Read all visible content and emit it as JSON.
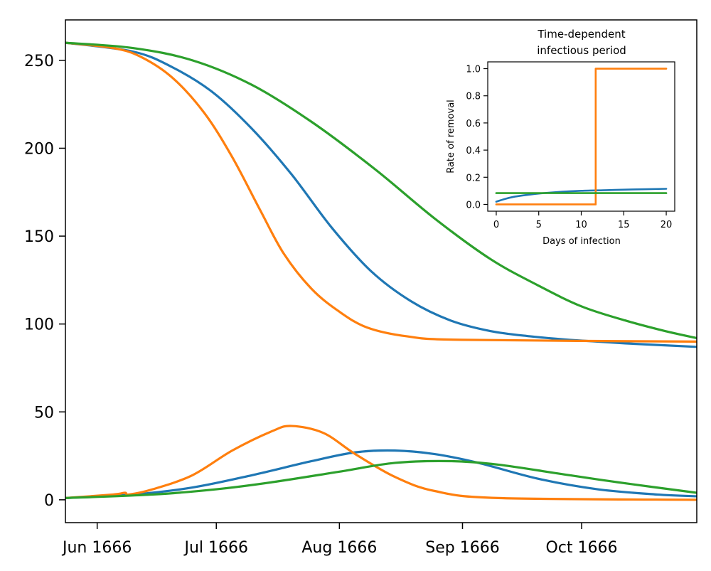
{
  "chart_data": [
    {
      "type": "line",
      "title": "",
      "xlabel": "",
      "ylabel": "",
      "x_ticks": [
        "Jun 1666",
        "Jul 1666",
        "Aug 1666",
        "Sep 1666",
        "Oct 1666"
      ],
      "y_ticks": [
        "0",
        "50",
        "100",
        "150",
        "200",
        "250"
      ],
      "xlim": [
        "1666-05-24",
        "1666-10-30"
      ],
      "ylim": [
        -13,
        273
      ],
      "grid": false,
      "series": [
        {
          "color": "#1f77b4",
          "points": [
            [
              "1666-05-24",
              260
            ],
            [
              "1666-06-10",
              255
            ],
            [
              "1666-06-20",
              246
            ],
            [
              "1666-06-30",
              232
            ],
            [
              "1666-07-10",
              211
            ],
            [
              "1666-07-20",
              185
            ],
            [
              "1666-07-30",
              155
            ],
            [
              "1666-08-09",
              130
            ],
            [
              "1666-08-19",
              113
            ],
            [
              "1666-08-29",
              102
            ],
            [
              "1666-09-08",
              96
            ],
            [
              "1666-09-18",
              93
            ],
            [
              "1666-09-28",
              91
            ],
            [
              "1666-10-12",
              89
            ],
            [
              "1666-10-30",
              87
            ]
          ]
        },
        {
          "color": "#ff7f0e",
          "points": [
            [
              "1666-05-24",
              260
            ],
            [
              "1666-06-05",
              257
            ],
            [
              "1666-06-12",
              252
            ],
            [
              "1666-06-20",
              240
            ],
            [
              "1666-06-28",
              220
            ],
            [
              "1666-07-05",
              195
            ],
            [
              "1666-07-12",
              165
            ],
            [
              "1666-07-18",
              140
            ],
            [
              "1666-07-25",
              120
            ],
            [
              "1666-08-01",
              107
            ],
            [
              "1666-08-08",
              98
            ],
            [
              "1666-08-18",
              93
            ],
            [
              "1666-09-01",
              91
            ],
            [
              "1666-10-30",
              90
            ]
          ]
        },
        {
          "color": "#2ca02c",
          "points": [
            [
              "1666-05-24",
              260
            ],
            [
              "1666-06-10",
              257
            ],
            [
              "1666-06-25",
              250
            ],
            [
              "1666-07-10",
              236
            ],
            [
              "1666-07-25",
              215
            ],
            [
              "1666-08-10",
              188
            ],
            [
              "1666-08-25",
              160
            ],
            [
              "1666-09-08",
              137
            ],
            [
              "1666-09-20",
              122
            ],
            [
              "1666-10-01",
              110
            ],
            [
              "1666-10-12",
              102
            ],
            [
              "1666-10-22",
              96
            ],
            [
              "1666-10-30",
              92
            ]
          ]
        },
        {
          "color": "#1f77b4",
          "points": [
            [
              "1666-05-24",
              1
            ],
            [
              "1666-06-10",
              3
            ],
            [
              "1666-06-25",
              7
            ],
            [
              "1666-07-10",
              14
            ],
            [
              "1666-07-25",
              22
            ],
            [
              "1666-08-05",
              27
            ],
            [
              "1666-08-15",
              28
            ],
            [
              "1666-08-25",
              26
            ],
            [
              "1666-09-05",
              21
            ],
            [
              "1666-09-20",
              12
            ],
            [
              "1666-10-05",
              6
            ],
            [
              "1666-10-20",
              3
            ],
            [
              "1666-10-30",
              2
            ]
          ]
        },
        {
          "color": "#ff7f0e",
          "points": [
            [
              "1666-05-24",
              1
            ],
            [
              "1666-06-05",
              3
            ],
            [
              "1666-06-08",
              4
            ],
            [
              "1666-06-09",
              3
            ],
            [
              "1666-06-15",
              6
            ],
            [
              "1666-06-25",
              14
            ],
            [
              "1666-07-05",
              28
            ],
            [
              "1666-07-15",
              39
            ],
            [
              "1666-07-20",
              42
            ],
            [
              "1666-07-28",
              38
            ],
            [
              "1666-08-05",
              26
            ],
            [
              "1666-08-15",
              13
            ],
            [
              "1666-08-25",
              5
            ],
            [
              "1666-09-10",
              1
            ],
            [
              "1666-10-30",
              0
            ]
          ]
        },
        {
          "color": "#2ca02c",
          "points": [
            [
              "1666-05-24",
              1
            ],
            [
              "1666-06-15",
              3
            ],
            [
              "1666-07-01",
              6
            ],
            [
              "1666-07-15",
              10
            ],
            [
              "1666-08-01",
              16
            ],
            [
              "1666-08-15",
              21
            ],
            [
              "1666-08-29",
              22
            ],
            [
              "1666-09-10",
              20
            ],
            [
              "1666-09-25",
              15
            ],
            [
              "1666-10-10",
              10
            ],
            [
              "1666-10-30",
              4
            ]
          ]
        }
      ]
    },
    {
      "type": "line",
      "title": "Time-dependent\ninfectious period",
      "xlabel": "Days of infection",
      "ylabel": "Rate of removal",
      "x_ticks": [
        "0",
        "5",
        "10",
        "15",
        "20"
      ],
      "y_ticks": [
        "0.0",
        "0.2",
        "0.4",
        "0.6",
        "0.8",
        "1.0"
      ],
      "xlim": [
        -1,
        21
      ],
      "ylim": [
        -0.05,
        1.05
      ],
      "series": [
        {
          "color": "#1f77b4",
          "points": [
            [
              0,
              0.02
            ],
            [
              1,
              0.04
            ],
            [
              2,
              0.055
            ],
            [
              3,
              0.065
            ],
            [
              5,
              0.08
            ],
            [
              7,
              0.09
            ],
            [
              10,
              0.1
            ],
            [
              13,
              0.105
            ],
            [
              16,
              0.11
            ],
            [
              20,
              0.115
            ]
          ]
        },
        {
          "color": "#ff7f0e",
          "points": [
            [
              0,
              0
            ],
            [
              11.7,
              0
            ],
            [
              11.7,
              1
            ],
            [
              20,
              1
            ]
          ]
        },
        {
          "color": "#2ca02c",
          "points": [
            [
              0,
              0.083
            ],
            [
              20,
              0.083
            ]
          ]
        }
      ]
    }
  ]
}
